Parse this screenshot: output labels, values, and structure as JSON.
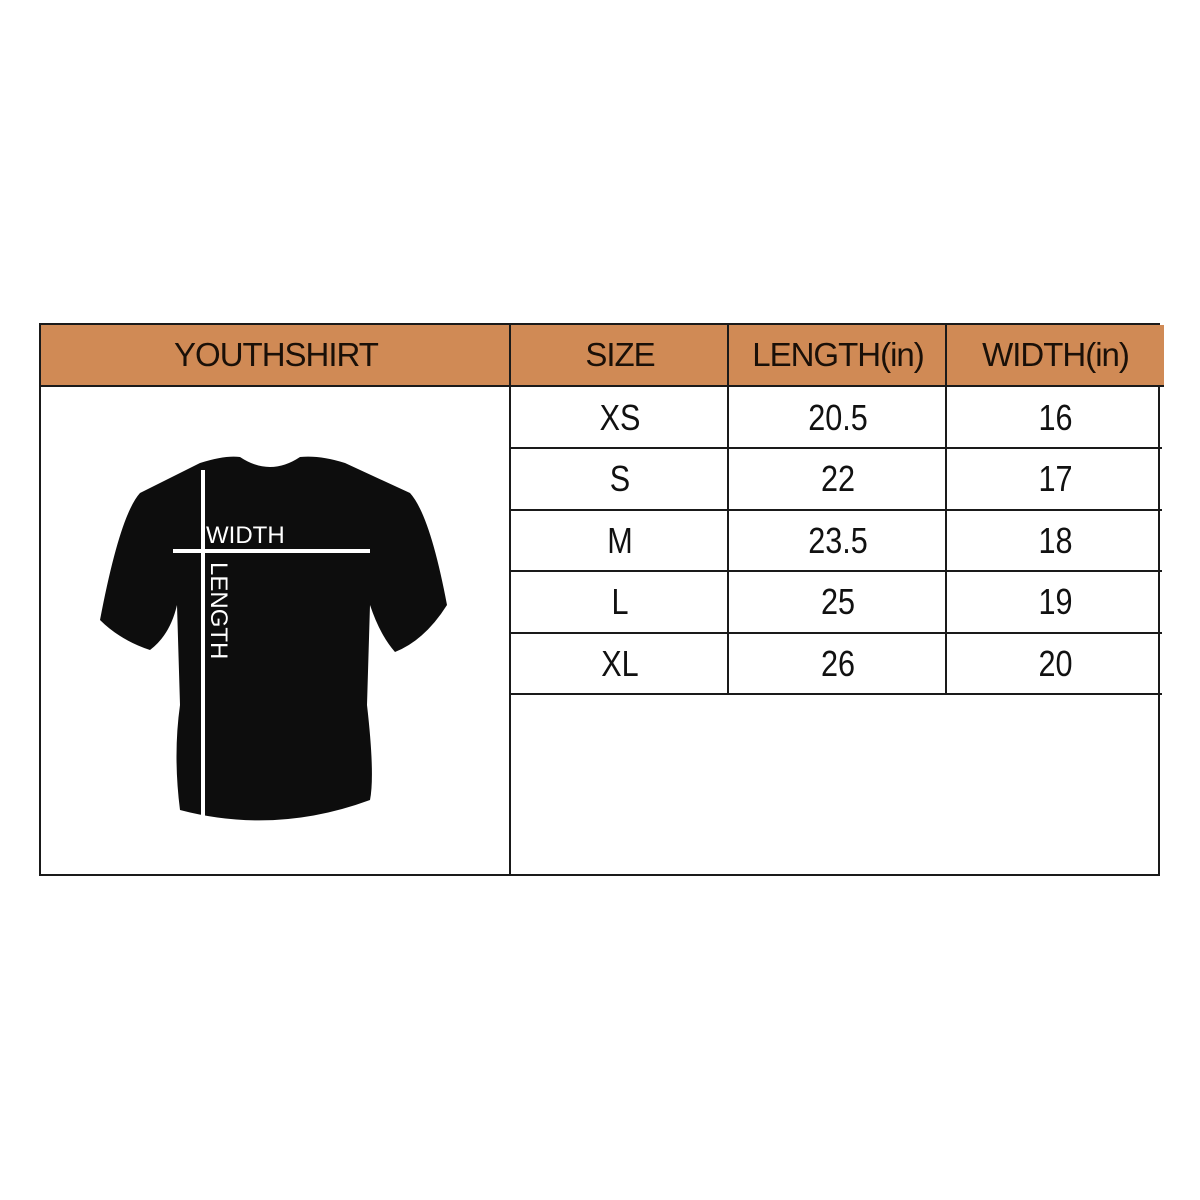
{
  "colors": {
    "header_bg": "#D08A55",
    "border": "#1a1a1a",
    "shirt": "#0d0d0d"
  },
  "header": {
    "product": "YOUTHSHIRT",
    "columns": [
      "SIZE",
      "LENGTH(in)",
      "WIDTH(in)"
    ]
  },
  "diagram": {
    "width_label": "WIDTH",
    "length_label": "LENGTH",
    "icon": "t-shirt-icon"
  },
  "rows": [
    {
      "size": "XS",
      "length": "20.5",
      "width": "16"
    },
    {
      "size": "S",
      "length": "22",
      "width": "17"
    },
    {
      "size": "M",
      "length": "23.5",
      "width": "18"
    },
    {
      "size": "L",
      "length": "25",
      "width": "19"
    },
    {
      "size": "XL",
      "length": "26",
      "width": "20"
    }
  ]
}
